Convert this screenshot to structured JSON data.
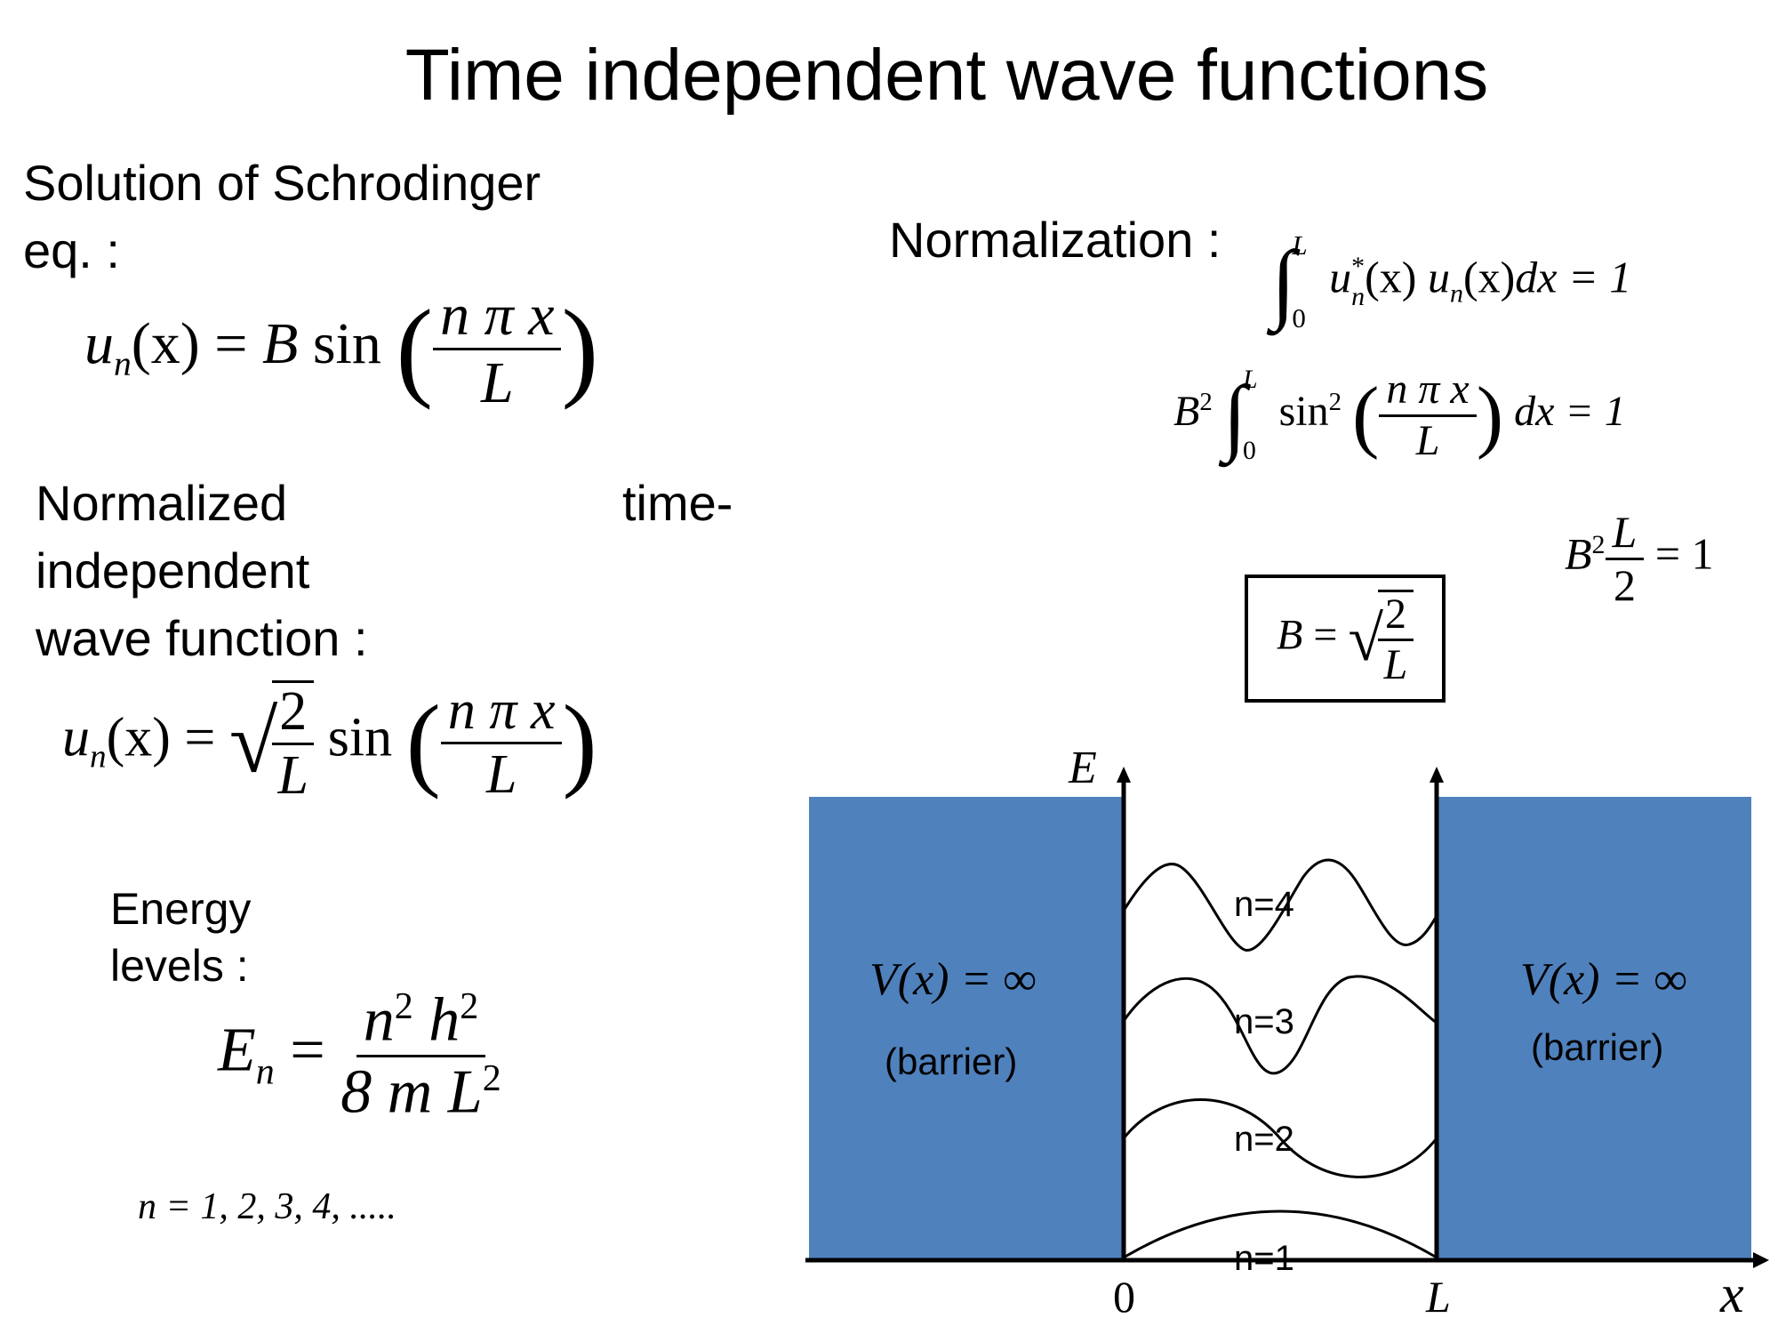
{
  "title": "Time independent wave functions",
  "left": {
    "solution_label_line1": "Solution of Schrodinger",
    "solution_label_line2": "eq. :",
    "normalized_label_a": "Normalized",
    "normalized_label_b": "time-",
    "normalized_label_line2": "independent",
    "normalized_label_line3": "wave function :",
    "energy_label_line1": "Energy",
    "energy_label_line2": "levels :",
    "n_values": "n = 1, 2, 3, 4, ....."
  },
  "right": {
    "normalization_label": "Normalization :"
  },
  "equations": {
    "un": "u",
    "n_sub": "n",
    "x_arg": "(x)",
    "equals": "=",
    "B": "B",
    "sin": "sin",
    "npix": "n π x",
    "L": "L",
    "two": "2",
    "En_E": "E",
    "n2h2": "n",
    "h": "h",
    "eight_m_L": "8 m L",
    "sq": "2",
    "integral_body": "u",
    "star": "*",
    "dx_eq_1": "dx = 1",
    "zero": "0",
    "one": "1"
  },
  "diagram": {
    "axis_y_label": "E",
    "axis_x_label": "x",
    "tick_zero": "0",
    "tick_L": "L",
    "barrier_left_eq": "V(x) = ∞",
    "barrier_right_eq": "V(x) = ∞",
    "barrier_left_caption": "(barrier)",
    "barrier_right_caption": "(barrier)",
    "level_labels": [
      "n=1",
      "n=2",
      "n=3",
      "n=4"
    ],
    "barrier_color": "#4f81bd"
  }
}
